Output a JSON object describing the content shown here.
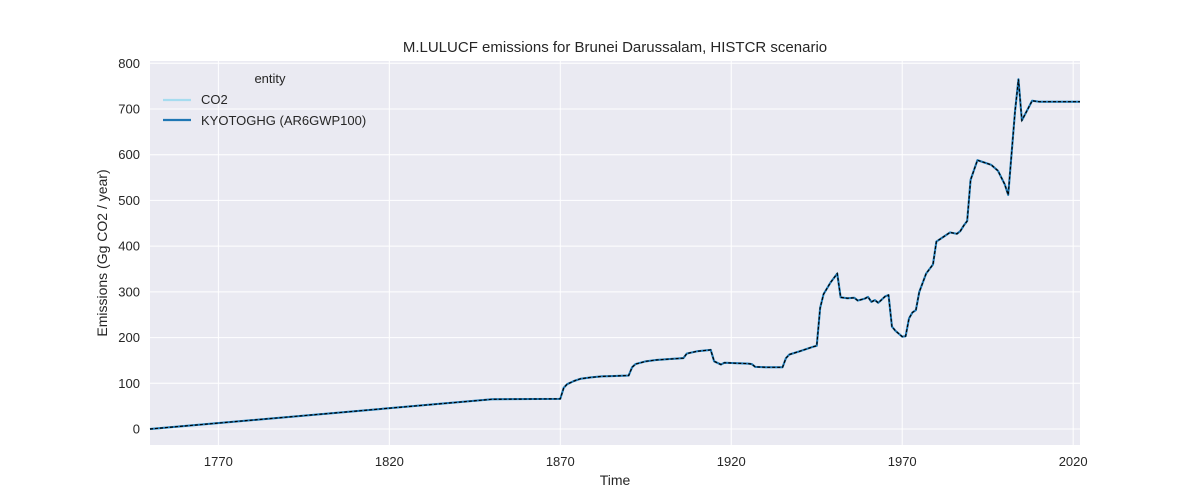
{
  "chart_data": {
    "type": "line",
    "title": "M.LULUCF emissions for Brunei Darussalam, HISTCR scenario",
    "xlabel": "Time",
    "ylabel": "Emissions (Gg CO2 / year)",
    "xlim": [
      1750,
      2022
    ],
    "ylim": [
      -35,
      805
    ],
    "x_ticks": [
      1770,
      1820,
      1870,
      1920,
      1970,
      2020
    ],
    "y_ticks": [
      0,
      100,
      200,
      300,
      400,
      500,
      600,
      700,
      800
    ],
    "grid": true,
    "legend": {
      "title": "entity",
      "placement": "top-left",
      "entries": [
        "CO2",
        "KYOTOGHG (AR6GWP100)"
      ]
    },
    "colors": {
      "background": "#eaeaf2",
      "grid": "#ffffff",
      "co2": "#a6dcef",
      "kyotoghg": "#1f77b4",
      "overlay": "#000000"
    },
    "series": [
      {
        "name": "CO2",
        "x": [
          1750,
          1850,
          1870,
          1871,
          1872,
          1874,
          1876,
          1879,
          1882,
          1886,
          1890,
          1891,
          1892,
          1895,
          1898,
          1902,
          1906,
          1907,
          1910,
          1914,
          1915,
          1917,
          1918,
          1921,
          1925,
          1926,
          1927,
          1930,
          1935,
          1936,
          1937,
          1940,
          1944,
          1945,
          1946,
          1947,
          1949,
          1951,
          1952,
          1954,
          1956,
          1957,
          1959,
          1960,
          1961,
          1962,
          1963,
          1964,
          1965,
          1966,
          1967,
          1968,
          1970,
          1971,
          1972,
          1973,
          1974,
          1975,
          1977,
          1979,
          1980,
          1982,
          1984,
          1986,
          1987,
          1988,
          1989,
          1990,
          1992,
          1994,
          1996,
          1998,
          2000,
          2001,
          2003,
          2004,
          2005,
          2008,
          2010,
          2015,
          2022
        ],
        "values": [
          0,
          65,
          66,
          90,
          98,
          105,
          110,
          113,
          115,
          116,
          117,
          135,
          142,
          148,
          151,
          153,
          155,
          165,
          170,
          173,
          148,
          141,
          145,
          144,
          143,
          142,
          136,
          135,
          135,
          155,
          163,
          170,
          180,
          182,
          265,
          295,
          320,
          340,
          288,
          286,
          287,
          281,
          285,
          289,
          278,
          282,
          276,
          283,
          290,
          293,
          224,
          215,
          202,
          203,
          242,
          255,
          260,
          300,
          340,
          360,
          410,
          420,
          430,
          427,
          433,
          445,
          455,
          545,
          588,
          583,
          578,
          565,
          535,
          512,
          695,
          765,
          675,
          718,
          716,
          716,
          716
        ]
      },
      {
        "name": "KYOTOGHG (AR6GWP100)",
        "x": [
          1750,
          1850,
          1870,
          1871,
          1872,
          1874,
          1876,
          1879,
          1882,
          1886,
          1890,
          1891,
          1892,
          1895,
          1898,
          1902,
          1906,
          1907,
          1910,
          1914,
          1915,
          1917,
          1918,
          1921,
          1925,
          1926,
          1927,
          1930,
          1935,
          1936,
          1937,
          1940,
          1944,
          1945,
          1946,
          1947,
          1949,
          1951,
          1952,
          1954,
          1956,
          1957,
          1959,
          1960,
          1961,
          1962,
          1963,
          1964,
          1965,
          1966,
          1967,
          1968,
          1970,
          1971,
          1972,
          1973,
          1974,
          1975,
          1977,
          1979,
          1980,
          1982,
          1984,
          1986,
          1987,
          1988,
          1989,
          1990,
          1992,
          1994,
          1996,
          1998,
          2000,
          2001,
          2003,
          2004,
          2005,
          2008,
          2010,
          2015,
          2022
        ],
        "values": [
          0,
          65,
          66,
          90,
          98,
          105,
          110,
          113,
          115,
          116,
          117,
          135,
          142,
          148,
          151,
          153,
          155,
          165,
          170,
          173,
          148,
          141,
          145,
          144,
          143,
          142,
          136,
          135,
          135,
          155,
          163,
          170,
          180,
          182,
          265,
          295,
          320,
          340,
          288,
          286,
          287,
          281,
          285,
          289,
          278,
          282,
          276,
          283,
          290,
          293,
          224,
          215,
          202,
          203,
          242,
          255,
          260,
          300,
          340,
          360,
          410,
          420,
          430,
          427,
          433,
          445,
          455,
          545,
          588,
          583,
          578,
          565,
          535,
          512,
          695,
          765,
          675,
          718,
          716,
          716,
          716
        ]
      }
    ]
  }
}
